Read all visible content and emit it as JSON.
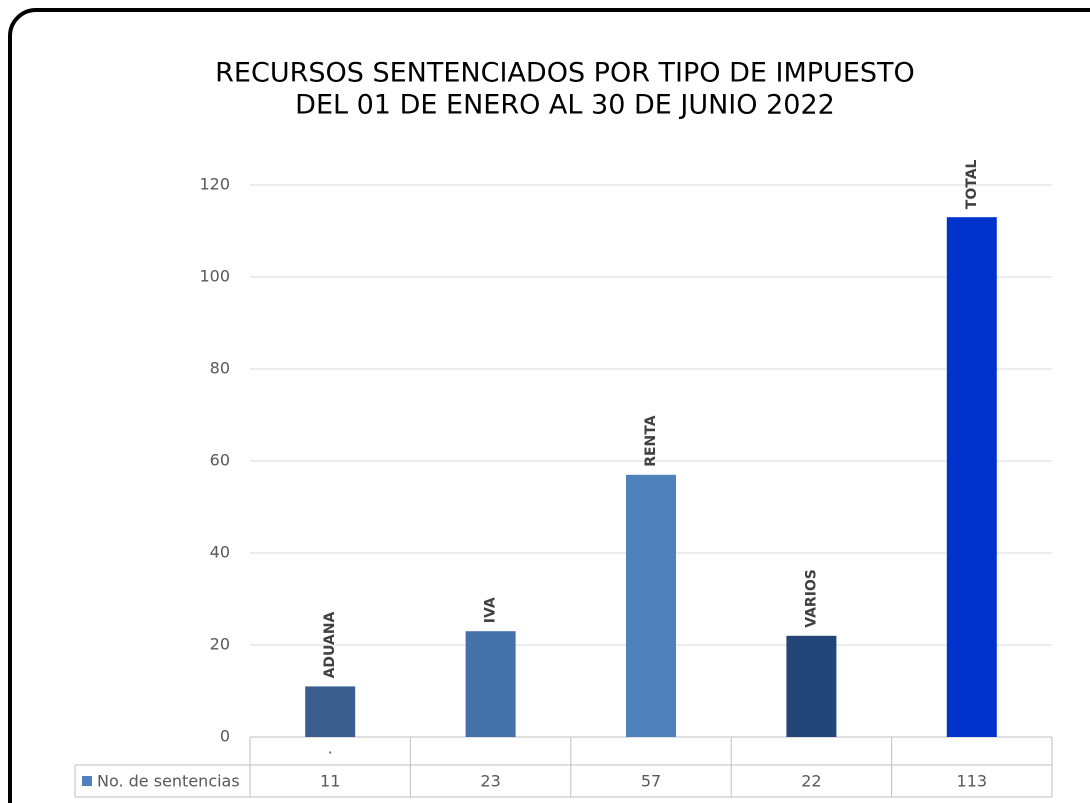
{
  "chart_data": {
    "type": "bar",
    "title": [
      "RECURSOS SENTENCIADOS POR TIPO DE IMPUESTO",
      "DEL 01 DE ENERO AL 30 DE JUNIO 2022"
    ],
    "categories": [
      ".",
      null,
      null,
      null,
      null
    ],
    "data_labels": [
      "ADUANA",
      "IVA",
      "RENTA",
      "VARIOS",
      "TOTAL"
    ],
    "series": [
      {
        "name": "No. de sentencias",
        "color": "#4f81bd",
        "colors": [
          "#3a5f8f",
          "#4472a8",
          "#4f81bd",
          "#244578",
          "#0033cc"
        ],
        "values": [
          11,
          23,
          57,
          22,
          113
        ]
      }
    ],
    "ylim": [
      0,
      120
    ],
    "yticks": [
      0,
      20,
      40,
      60,
      80,
      100,
      120
    ],
    "grid": true,
    "data_table": true
  }
}
